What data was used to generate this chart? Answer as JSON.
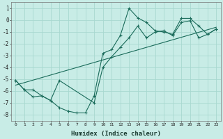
{
  "xlabel": "Humidex (Indice chaleur)",
  "ylabel": "",
  "bg_color": "#c8ece6",
  "grid_color": "#a8d8d0",
  "line_color": "#1a6b5a",
  "xlim": [
    -0.5,
    23.5
  ],
  "ylim": [
    -8.5,
    1.5
  ],
  "yticks": [
    1,
    0,
    -1,
    -2,
    -3,
    -4,
    -5,
    -6,
    -7,
    -8
  ],
  "xticks": [
    0,
    1,
    2,
    3,
    4,
    5,
    6,
    7,
    8,
    9,
    10,
    11,
    12,
    13,
    14,
    15,
    16,
    17,
    18,
    19,
    20,
    21,
    22,
    23
  ],
  "curve1_x": [
    0,
    1,
    2,
    3,
    4,
    5,
    6,
    7,
    8,
    9,
    10,
    11,
    12,
    13,
    14,
    15,
    16,
    17,
    18,
    19,
    20,
    21,
    22,
    23
  ],
  "curve1_y": [
    -5.1,
    -5.9,
    -5.9,
    -6.4,
    -6.8,
    -7.4,
    -7.7,
    -7.85,
    -7.85,
    -6.4,
    -2.8,
    -2.5,
    -1.3,
    1.0,
    0.2,
    -0.2,
    -0.9,
    -1.0,
    -1.2,
    0.15,
    0.15,
    -0.5,
    -1.2,
    -0.75
  ],
  "curve2_x": [
    0,
    1,
    2,
    3,
    4,
    5,
    9,
    10,
    11,
    12,
    13,
    14,
    15,
    16,
    17,
    18,
    19,
    20,
    21,
    22,
    23
  ],
  "curve2_y": [
    -5.1,
    -5.9,
    -6.5,
    -6.4,
    -6.8,
    -5.1,
    -7.0,
    -4.0,
    -3.1,
    -2.3,
    -1.5,
    -0.5,
    -1.5,
    -1.0,
    -0.9,
    -1.3,
    -0.2,
    -0.05,
    -1.5,
    -1.2,
    -0.75
  ],
  "trend_x": [
    0,
    23
  ],
  "trend_y": [
    -5.5,
    -0.6
  ]
}
